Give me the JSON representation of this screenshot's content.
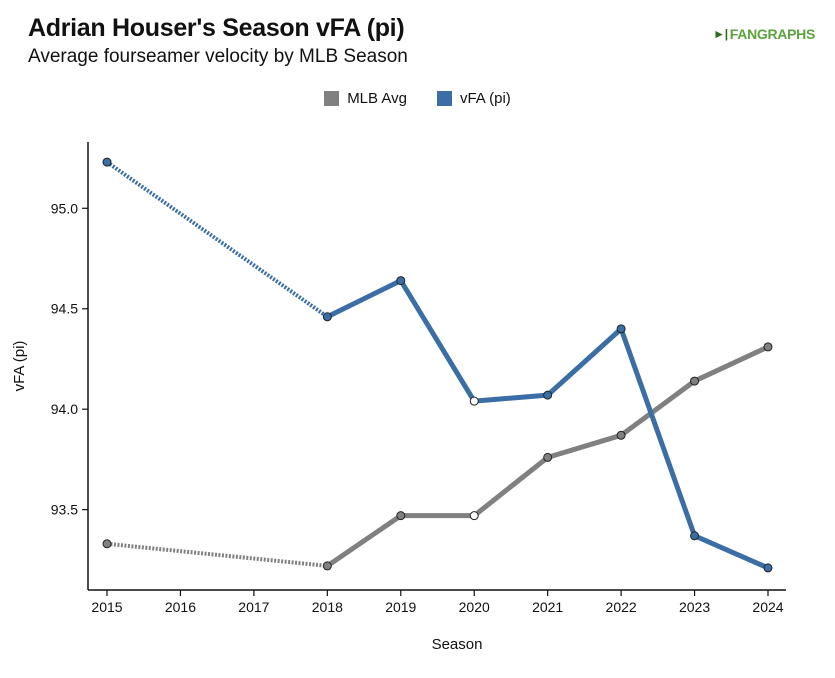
{
  "header": {
    "title": "Adrian Houser's Season vFA (pi)",
    "subtitle": "Average fourseamer velocity by MLB Season",
    "logo_text": "FANGRAPHS",
    "logo_icon": "fangraphs-figure-icon"
  },
  "colors": {
    "mlb_avg": "#808080",
    "player": "#3a6ea5"
  },
  "chart_data": {
    "type": "line",
    "title": "Adrian Houser's Season vFA (pi)",
    "subtitle": "Average fourseamer velocity by MLB Season",
    "xlabel": "Season",
    "ylabel": "vFA (pi)",
    "x_ticks": [
      "2015",
      "2016",
      "2017",
      "2018",
      "2019",
      "2020",
      "2021",
      "2022",
      "2023",
      "2024"
    ],
    "y_ticks": [
      "93.5",
      "94.0",
      "94.5",
      "95.0"
    ],
    "xlim": [
      2015,
      2024
    ],
    "ylim": [
      93.1,
      95.33
    ],
    "grid": false,
    "legend_position": "top-center",
    "series": [
      {
        "name": "MLB Avg",
        "color": "#808080",
        "points": [
          {
            "x": 2015,
            "y": 93.33
          },
          {
            "x": 2018,
            "y": 93.22
          },
          {
            "x": 2019,
            "y": 93.47
          },
          {
            "x": 2020,
            "y": 93.47
          },
          {
            "x": 2021,
            "y": 93.76
          },
          {
            "x": 2022,
            "y": 93.87
          },
          {
            "x": 2023,
            "y": 94.14
          },
          {
            "x": 2024,
            "y": 94.31
          }
        ],
        "gaps": [
          [
            2015,
            2018
          ]
        ],
        "hollow_points": [
          2020
        ]
      },
      {
        "name": "vFA (pi)",
        "color": "#3a6ea5",
        "points": [
          {
            "x": 2015,
            "y": 95.23
          },
          {
            "x": 2018,
            "y": 94.46
          },
          {
            "x": 2019,
            "y": 94.64
          },
          {
            "x": 2020,
            "y": 94.04
          },
          {
            "x": 2021,
            "y": 94.07
          },
          {
            "x": 2022,
            "y": 94.4
          },
          {
            "x": 2023,
            "y": 93.37
          },
          {
            "x": 2024,
            "y": 93.21
          }
        ],
        "gaps": [
          [
            2015,
            2018
          ]
        ],
        "hollow_points": [
          2020
        ]
      }
    ]
  }
}
